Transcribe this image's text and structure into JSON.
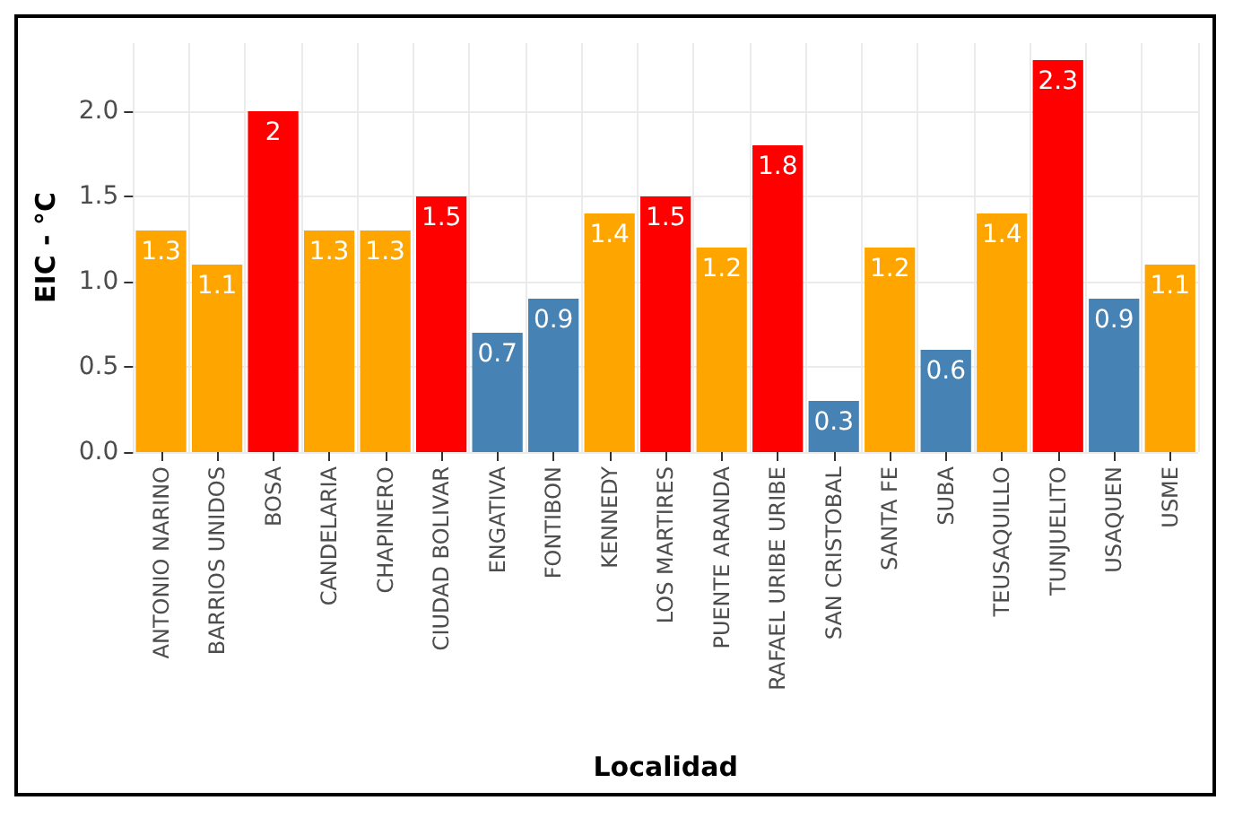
{
  "chart_data": {
    "type": "bar",
    "xlabel": "Localidad",
    "ylabel": "EIC - °C",
    "categories": [
      "ANTONIO NARINO",
      "BARRIOS UNIDOS",
      "BOSA",
      "CANDELARIA",
      "CHAPINERO",
      "CIUDAD BOLIVAR",
      "ENGATIVA",
      "FONTIBON",
      "KENNEDY",
      "LOS MARTIRES",
      "PUENTE ARANDA",
      "RAFAEL URIBE URIBE",
      "SAN CRISTOBAL",
      "SANTA FE",
      "SUBA",
      "TEUSAQUILLO",
      "TUNJUELITO",
      "USAQUEN",
      "USME"
    ],
    "values": [
      1.3,
      1.1,
      2,
      1.3,
      1.3,
      1.5,
      0.7,
      0.9,
      1.4,
      1.5,
      1.2,
      1.8,
      0.3,
      1.2,
      0.6,
      1.4,
      2.3,
      0.9,
      1.1
    ],
    "colors": [
      "#ffa500",
      "#ffa500",
      "#ff0000",
      "#ffa500",
      "#ffa500",
      "#ff0000",
      "#4682b4",
      "#4682b4",
      "#ffa500",
      "#ff0000",
      "#ffa500",
      "#ff0000",
      "#4682b4",
      "#ffa500",
      "#4682b4",
      "#ffa500",
      "#ff0000",
      "#4682b4",
      "#ffa500"
    ],
    "ylim": [
      0,
      2.4
    ],
    "yticks": [
      {
        "value": 0,
        "label": "0.0"
      },
      {
        "value": 0.5,
        "label": "0.5"
      },
      {
        "value": 1,
        "label": "1.0"
      },
      {
        "value": 1.5,
        "label": "1.5"
      },
      {
        "value": 2,
        "label": "2.0"
      }
    ],
    "grid": true,
    "data_labels": true
  }
}
